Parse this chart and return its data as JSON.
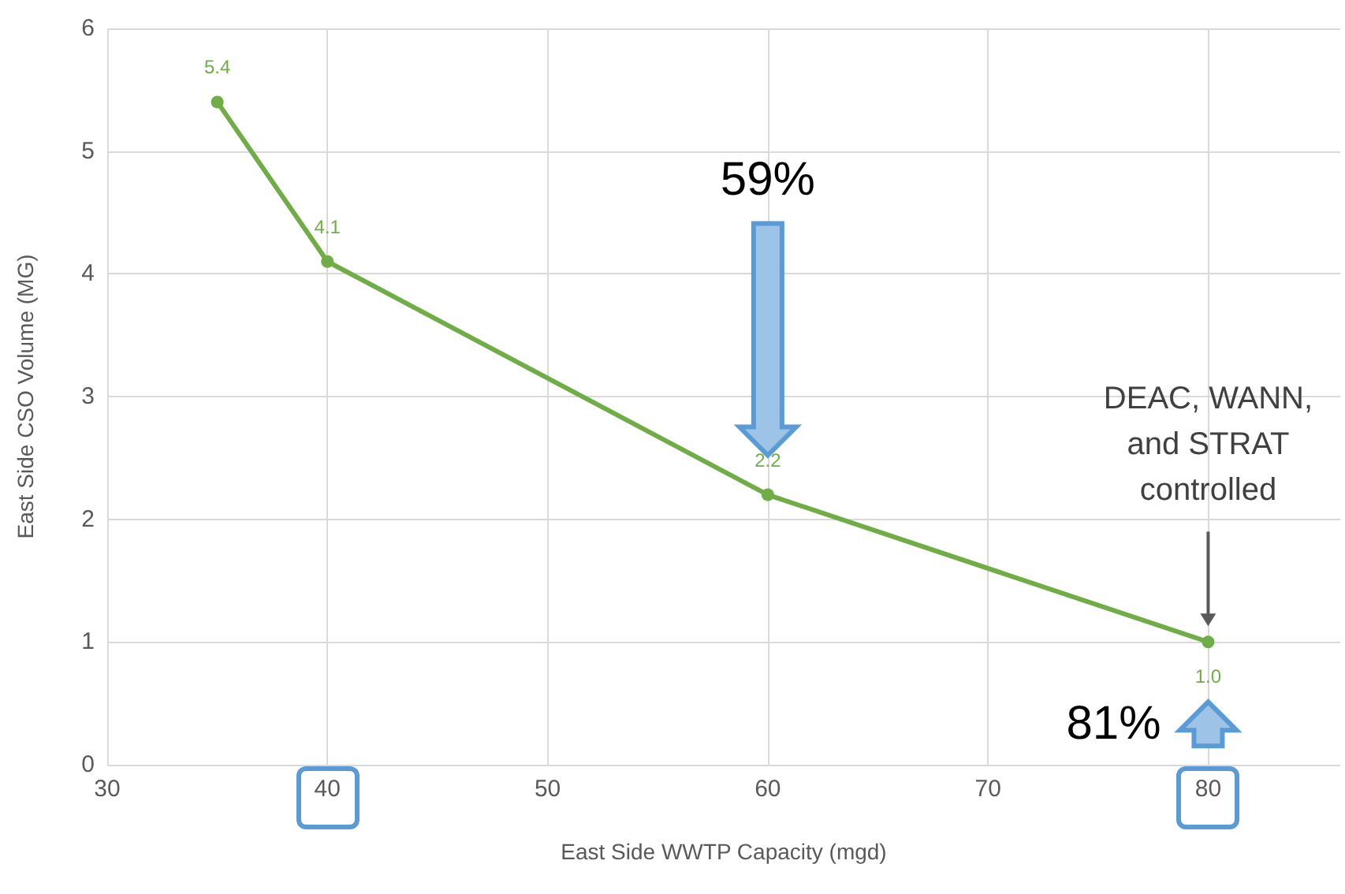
{
  "chart_data": {
    "type": "line",
    "xlabel": "East Side WWTP Capacity (mgd)",
    "ylabel": "East Side CSO Volume (MG)",
    "x": [
      35,
      40,
      60,
      80
    ],
    "series": [
      {
        "color": "#70ad47",
        "values": [
          5.4,
          4.1,
          2.2,
          1.0
        ],
        "value_labels": [
          "5.4",
          "4.1",
          "2.2",
          "1.0"
        ]
      }
    ],
    "xlim": [
      30,
      86
    ],
    "xticks": [
      30,
      40,
      50,
      60,
      70,
      80
    ],
    "ylim": [
      0,
      6
    ],
    "yticks": [
      0,
      1,
      2,
      3,
      4,
      5,
      6
    ],
    "grid": true,
    "marker": "circle",
    "line_style": "solid",
    "annotations": [
      "59%",
      "81%",
      "DEAC, WANN,\nand STRAT\ncontrolled"
    ]
  }
}
